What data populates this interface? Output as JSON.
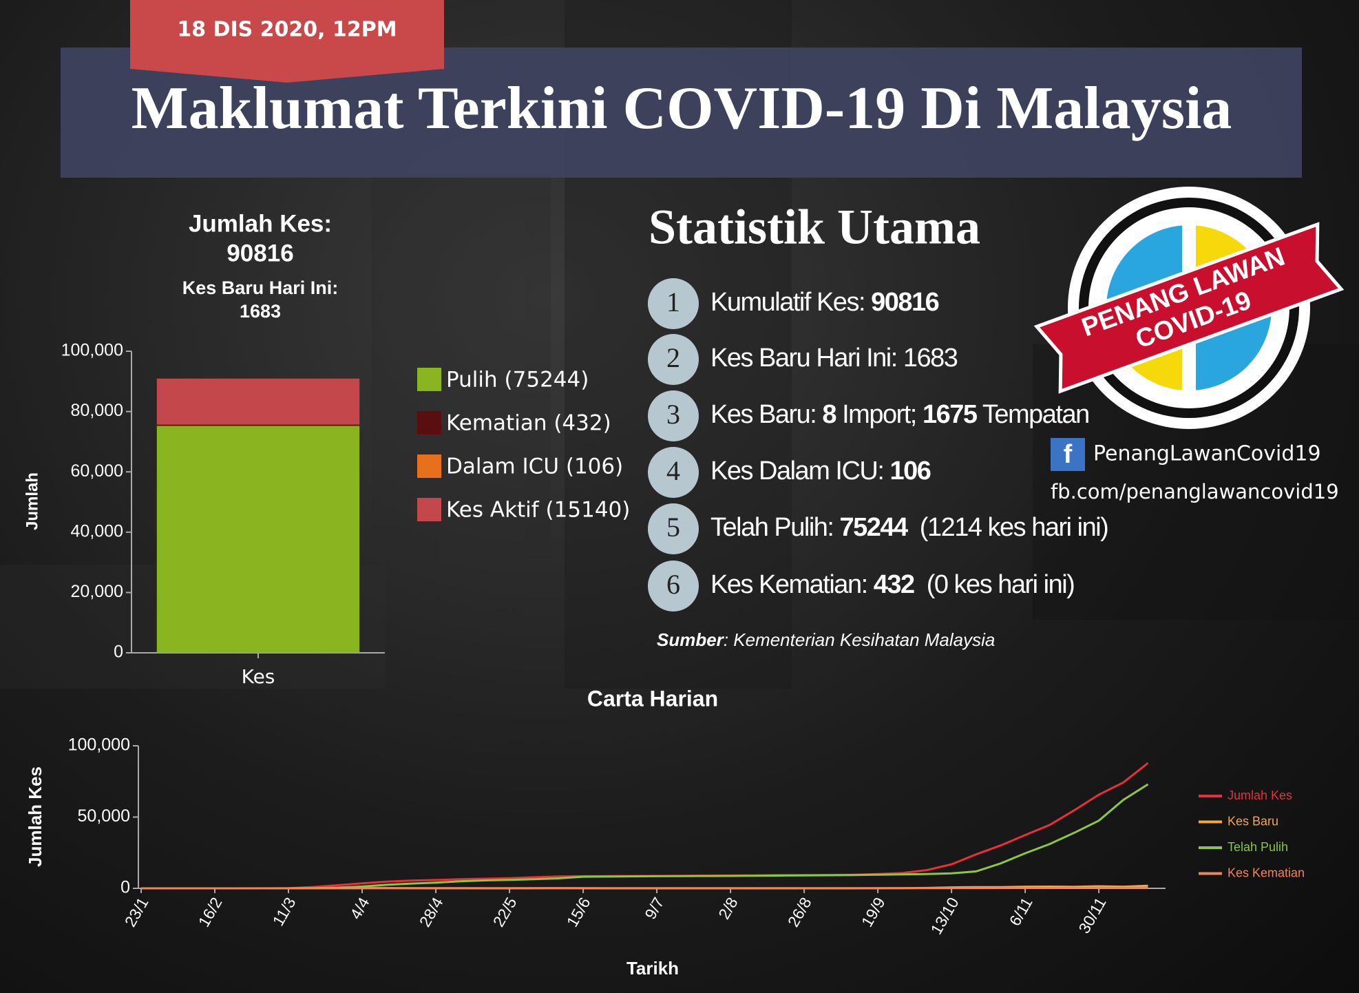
{
  "header": {
    "date": "18 DIS 2020, 12PM",
    "title": "Maklumat Terkini COVID-19 Di Malaysia"
  },
  "stats": {
    "title": "Statistik Utama",
    "items": [
      {
        "num": "1",
        "parts": [
          {
            "text": "Kumulatif Kes: "
          },
          {
            "bold": "90816"
          }
        ]
      },
      {
        "num": "2",
        "parts": [
          {
            "text": "Kes Baru Hari Ini: 1683"
          }
        ]
      },
      {
        "num": "3",
        "parts": [
          {
            "text": "Kes Baru: "
          },
          {
            "bold": "8"
          },
          {
            "text": " Import; "
          },
          {
            "bold": "1675"
          },
          {
            "text": " Tempatan"
          }
        ]
      },
      {
        "num": "4",
        "parts": [
          {
            "text": "Kes Dalam ICU: "
          },
          {
            "bold": "106"
          }
        ]
      },
      {
        "num": "5",
        "parts": [
          {
            "text": "Telah Pulih: "
          },
          {
            "bold": "75244"
          },
          {
            "text": "  (1214 kes hari ini)"
          }
        ]
      },
      {
        "num": "6",
        "parts": [
          {
            "text": "Kes Kematian: "
          },
          {
            "bold": "432"
          },
          {
            "text": "  (0 kes hari ini)"
          }
        ]
      }
    ],
    "source_label": "Sumber",
    "source": ": Kementerian Kesihatan Malaysia"
  },
  "logo": {
    "line1": "PENANG LAWAN",
    "line2": "COVID-19"
  },
  "facebook": {
    "icon": "f",
    "name": "PenangLawanCovid19",
    "url": "fb.com/penanglawancovid19"
  },
  "chart_data": [
    {
      "type": "bar",
      "stacked": true,
      "title": [
        "Jumlah Kes:",
        "90816"
      ],
      "subtitle": [
        "Kes Baru Hari Ini:",
        "1683"
      ],
      "ylabel": "Jumlah",
      "categories": [
        "Kes"
      ],
      "series": [
        {
          "name": "Pulih (75244)",
          "color": "#8ab521",
          "values": [
            75244
          ]
        },
        {
          "name": "Kematian (432)",
          "color": "#5a0e0e",
          "values": [
            432
          ]
        },
        {
          "name": "Dalam ICU (106)",
          "color": "#e8701c",
          "values": [
            106
          ]
        },
        {
          "name": "Kes Aktif (15140)",
          "color": "#c4474b",
          "values": [
            15140
          ]
        }
      ],
      "ylim": [
        0,
        100000
      ],
      "yticks": [
        0,
        {
          "value": 20000,
          "label": "20,000"
        },
        {
          "value": 40000,
          "label": "40,000"
        },
        {
          "value": 60000,
          "label": "60,000"
        },
        {
          "value": 80000,
          "label": "80,000"
        },
        {
          "value": 100000,
          "label": "100,000"
        }
      ],
      "grid": false,
      "legend": "right"
    },
    {
      "type": "line",
      "title": "Carta Harian",
      "xlabel": "Tarikh",
      "ylabel": "Jumlah Kes",
      "categories": [
        "23/1",
        null,
        null,
        "16/2",
        null,
        null,
        "11/3",
        null,
        null,
        "4/4",
        null,
        null,
        "28/4",
        null,
        null,
        "22/5",
        null,
        null,
        "15/6",
        null,
        null,
        "9/7",
        null,
        null,
        "2/8",
        null,
        null,
        "26/8",
        null,
        null,
        "19/9",
        null,
        null,
        "13/10",
        null,
        null,
        "6/11",
        null,
        null,
        "30/11",
        null,
        null
      ],
      "series": [
        {
          "name": "Jumlah Kes",
          "color": "#e8303a",
          "values": [
            0,
            8,
            17,
            22,
            22,
            36,
            149,
            900,
            2161,
            3483,
            4683,
            5425,
            5851,
            6428,
            6779,
            7137,
            7762,
            8322,
            8494,
            8587,
            8640,
            8696,
            8755,
            8897,
            8999,
            9087,
            9235,
            9334,
            9374,
            9559,
            10052,
            10769,
            12813,
            16880,
            23804,
            30090,
            37372,
            44482,
            54775,
            65697,
            74294,
            87913
          ]
        },
        {
          "name": "Kes Baru",
          "color": "#f5a742",
          "values": [
            0,
            4,
            3,
            0,
            0,
            7,
            20,
            110,
            130,
            217,
            184,
            36,
            31,
            45,
            16,
            20,
            30,
            93,
            41,
            4,
            3,
            5,
            11,
            7,
            3,
            6,
            18,
            10,
            4,
            3,
            52,
            115,
            293,
            660,
            871,
            799,
            1168,
            1208,
            1096,
            1472,
            1180,
            1772
          ]
        },
        {
          "name": "Telah Pulih",
          "color": "#8dc63f",
          "values": [
            0,
            0,
            3,
            15,
            22,
            22,
            26,
            75,
            479,
            1241,
            2478,
            3349,
            4032,
            4912,
            5571,
            5912,
            6353,
            7019,
            8162,
            8285,
            8385,
            8481,
            8535,
            8642,
            8702,
            8802,
            8950,
            9070,
            9190,
            9310,
            9560,
            9800,
            10050,
            10500,
            11900,
            17500,
            24600,
            31100,
            39000,
            47500,
            62100,
            73000
          ]
        },
        {
          "name": "Kes Kematian",
          "color": "#f0845a",
          "values": [
            0,
            0,
            0,
            0,
            0,
            0,
            0,
            3,
            27,
            57,
            82,
            95,
            100,
            107,
            112,
            115,
            115,
            117,
            121,
            121,
            121,
            121,
            122,
            124,
            125,
            125,
            125,
            128,
            128,
            128,
            130,
            134,
            137,
            163,
            204,
            249,
            284,
            300,
            335,
            363,
            384,
            402
          ]
        }
      ],
      "ylim": [
        0,
        100000
      ],
      "yticks": [
        0,
        {
          "value": 50000,
          "label": "50,000"
        },
        {
          "value": 100000,
          "label": "100,000"
        }
      ],
      "grid": false,
      "legend": "right"
    }
  ]
}
